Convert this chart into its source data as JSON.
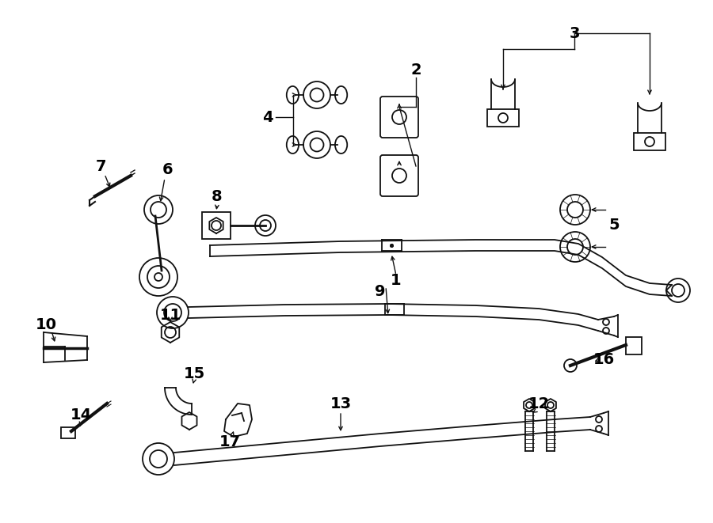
{
  "bg_color": "#ffffff",
  "line_color": "#111111",
  "figsize": [
    9.0,
    6.61
  ],
  "dpi": 100,
  "lw": 1.3
}
